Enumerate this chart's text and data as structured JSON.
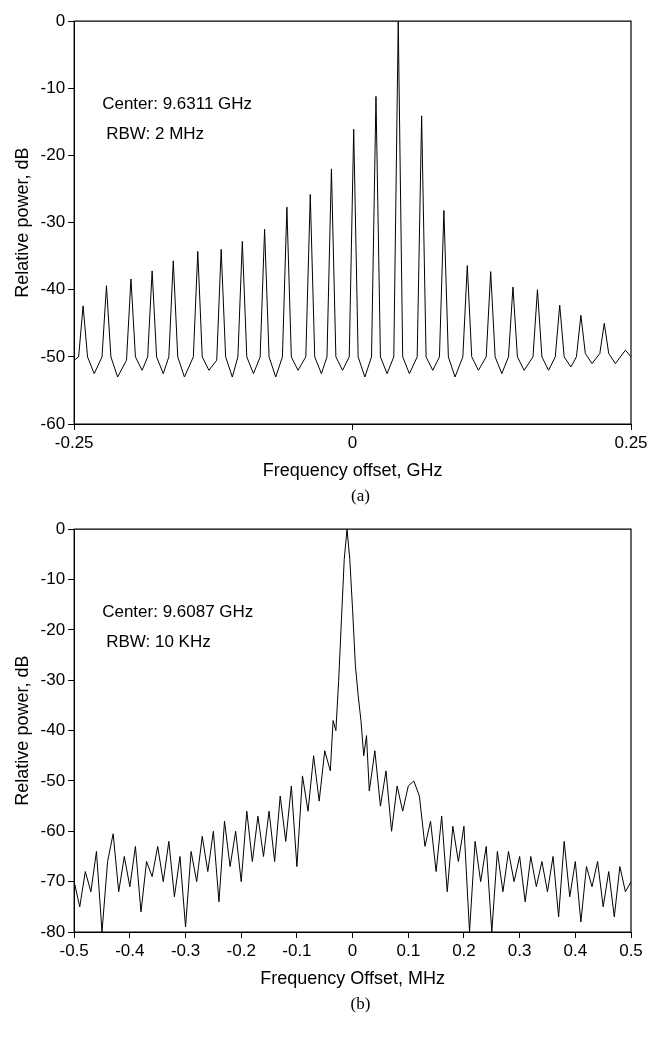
{
  "chart_data": [
    {
      "type": "line",
      "xlabel": "Frequency offset, GHz",
      "ylabel": "Relative power, dB",
      "annotations": [
        "Center: 9.6311 GHz",
        "RBW: 2 MHz",
        "(a)"
      ],
      "xlim": [
        -0.25,
        0.25
      ],
      "xticks": [
        -0.25,
        0,
        0.25
      ],
      "ylim": [
        -60,
        0
      ],
      "yticks": [
        -60,
        -50,
        -40,
        -30,
        -20,
        -10,
        0
      ],
      "grid": false,
      "legend": false,
      "x": [
        -0.25,
        -0.246,
        -0.242,
        -0.238,
        -0.232,
        -0.225,
        -0.221,
        -0.217,
        -0.211,
        -0.203,
        -0.199,
        -0.195,
        -0.189,
        -0.184,
        -0.18,
        -0.176,
        -0.17,
        -0.165,
        -0.161,
        -0.157,
        -0.151,
        -0.143,
        -0.139,
        -0.135,
        -0.129,
        -0.122,
        -0.118,
        -0.114,
        -0.108,
        -0.103,
        -0.099,
        -0.095,
        -0.089,
        -0.083,
        -0.079,
        -0.075,
        -0.069,
        -0.063,
        -0.059,
        -0.055,
        -0.049,
        -0.042,
        -0.038,
        -0.034,
        -0.028,
        -0.023,
        -0.019,
        -0.015,
        -0.009,
        -0.003,
        0.001,
        0.005,
        0.011,
        0.017,
        0.021,
        0.025,
        0.031,
        0.037,
        0.041,
        0.045,
        0.051,
        0.058,
        0.062,
        0.066,
        0.072,
        0.078,
        0.082,
        0.086,
        0.092,
        0.099,
        0.103,
        0.107,
        0.113,
        0.12,
        0.124,
        0.128,
        0.134,
        0.14,
        0.144,
        0.148,
        0.154,
        0.162,
        0.166,
        0.17,
        0.176,
        0.182,
        0.186,
        0.19,
        0.196,
        0.201,
        0.205,
        0.209,
        0.215,
        0.222,
        0.226,
        0.23,
        0.236,
        0.245,
        0.25
      ],
      "series": [
        {
          "color": "#000000",
          "values": [
            -50.5,
            -50,
            -42.4,
            -50,
            -52.5,
            -50,
            -39.4,
            -50,
            -53,
            -50.5,
            -38.4,
            -50,
            -52,
            -50,
            -37.2,
            -50,
            -52.5,
            -50,
            -35.7,
            -50,
            -53,
            -50,
            -34.3,
            -50,
            -52,
            -50.5,
            -34,
            -50,
            -53,
            -50,
            -32.8,
            -50,
            -52.5,
            -50,
            -31,
            -50,
            -53,
            -50,
            -27.7,
            -50,
            -52,
            -50,
            -25.8,
            -50,
            -52.5,
            -50,
            -22,
            -50,
            -52,
            -50,
            -16.1,
            -50,
            -53,
            -50,
            -11.2,
            -50,
            -52.5,
            -50,
            0,
            -50,
            -52.5,
            -50,
            -14.1,
            -50,
            -52,
            -50,
            -28.2,
            -50,
            -53,
            -50,
            -36.4,
            -50,
            -52,
            -50,
            -37.3,
            -50,
            -52.5,
            -50,
            -39.6,
            -50,
            -52,
            -50,
            -40,
            -50,
            -52,
            -50,
            -42.3,
            -50,
            -51.5,
            -50,
            -43.8,
            -49.5,
            -51,
            -49.5,
            -45,
            -49.5,
            -51,
            -49,
            -50
          ]
        }
      ]
    },
    {
      "type": "line",
      "xlabel": "Frequency Offset, MHz",
      "ylabel": "Relative power, dB",
      "annotations": [
        "Center: 9.6087 GHz",
        "RBW: 10 KHz",
        "(b)"
      ],
      "xlim": [
        -0.5,
        0.5
      ],
      "xticks": [
        -0.5,
        -0.4,
        -0.3,
        -0.2,
        -0.1,
        0,
        0.1,
        0.2,
        0.3,
        0.4,
        0.5
      ],
      "ylim": [
        -80,
        0
      ],
      "yticks": [
        -80,
        -70,
        -60,
        -50,
        -40,
        -30,
        -20,
        -10,
        0
      ],
      "grid": false,
      "legend": false,
      "x": [
        -0.5,
        -0.49,
        -0.48,
        -0.47,
        -0.46,
        -0.45,
        -0.44,
        -0.43,
        -0.42,
        -0.41,
        -0.4,
        -0.39,
        -0.38,
        -0.37,
        -0.36,
        -0.35,
        -0.34,
        -0.33,
        -0.32,
        -0.31,
        -0.3,
        -0.29,
        -0.28,
        -0.27,
        -0.26,
        -0.25,
        -0.24,
        -0.23,
        -0.22,
        -0.21,
        -0.2,
        -0.19,
        -0.18,
        -0.17,
        -0.16,
        -0.15,
        -0.14,
        -0.13,
        -0.12,
        -0.11,
        -0.1,
        -0.09,
        -0.08,
        -0.07,
        -0.06,
        -0.05,
        -0.04,
        -0.035,
        -0.03,
        -0.025,
        -0.02,
        -0.015,
        -0.01,
        -0.005,
        0,
        0.005,
        0.01,
        0.015,
        0.02,
        0.025,
        0.03,
        0.04,
        0.05,
        0.06,
        0.07,
        0.08,
        0.09,
        0.1,
        0.11,
        0.12,
        0.13,
        0.14,
        0.15,
        0.16,
        0.17,
        0.18,
        0.19,
        0.2,
        0.21,
        0.22,
        0.23,
        0.24,
        0.25,
        0.26,
        0.27,
        0.28,
        0.29,
        0.3,
        0.31,
        0.32,
        0.33,
        0.34,
        0.35,
        0.36,
        0.37,
        0.38,
        0.39,
        0.4,
        0.41,
        0.42,
        0.43,
        0.44,
        0.45,
        0.46,
        0.47,
        0.48,
        0.49,
        0.5
      ],
      "series": [
        {
          "color": "#000000",
          "values": [
            -70,
            -75,
            -68,
            -72,
            -64,
            -80,
            -66,
            -60.5,
            -72,
            -65,
            -71,
            -63,
            -76,
            -66,
            -69,
            -63,
            -70,
            -62,
            -73,
            -65,
            -79,
            -64,
            -70,
            -61,
            -68,
            -60,
            -74,
            -58,
            -67,
            -60,
            -70,
            -56,
            -66,
            -57,
            -65,
            -56,
            -66,
            -53,
            -62,
            -51,
            -67,
            -49,
            -56,
            -45,
            -54,
            -44,
            -48,
            -38,
            -40,
            -30,
            -18,
            -6,
            0,
            -6,
            -16,
            -27,
            -33,
            -38,
            -45,
            -41,
            -52,
            -44,
            -55,
            -48,
            -60,
            -51,
            -56,
            -51,
            -50,
            -53,
            -63,
            -58,
            -68,
            -57,
            -72,
            -59,
            -66,
            -59,
            -80,
            -62,
            -70,
            -63,
            -80,
            -64,
            -72,
            -64,
            -70,
            -65,
            -74,
            -65,
            -71,
            -66,
            -72,
            -65,
            -77,
            -62,
            -73,
            -66,
            -78,
            -67,
            -71,
            -66,
            -75,
            -68,
            -77,
            -67,
            -72,
            -70
          ]
        }
      ]
    }
  ]
}
